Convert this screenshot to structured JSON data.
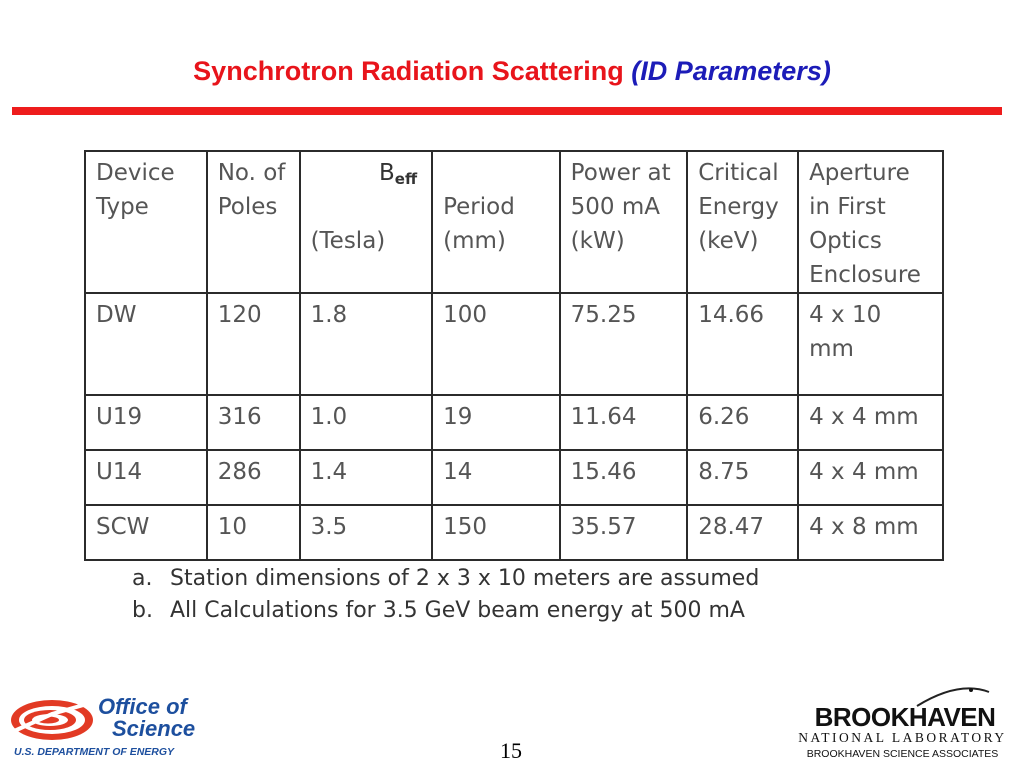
{
  "slide": {
    "title_main": "Synchrotron Radiation Scattering ",
    "title_sub": "(ID Parameters)",
    "page_number": "15",
    "accent_red": "#ee1c1c",
    "accent_blue": "#1c1cb8"
  },
  "table": {
    "headers": {
      "device_type": [
        "Device",
        "Type"
      ],
      "poles": [
        "No. of",
        "Poles"
      ],
      "beff_main": "B",
      "beff_sub": "eff",
      "beff_unit": "(Tesla)",
      "period": "Period",
      "period_unit": "(mm)",
      "power": [
        "Power at",
        "500 mA"
      ],
      "power_unit": "(kW)",
      "critical": [
        "Critical",
        "Energy"
      ],
      "critical_unit": "(keV)",
      "aperture": [
        "Aperture",
        "in First",
        "Optics",
        "Enclosure"
      ]
    },
    "rows": [
      [
        "DW",
        "120",
        "1.8",
        "100",
        "75.25",
        "14.66",
        "4 x 10 mm"
      ],
      [
        "U19",
        "316",
        "1.0",
        "19",
        "11.64",
        "6.26",
        "4 x 4 mm"
      ],
      [
        "U14",
        "286",
        "1.4",
        "14",
        "15.46",
        "8.75",
        "4 x 4 mm"
      ],
      [
        "SCW",
        "10",
        "3.5",
        "150",
        "35.57",
        "28.47",
        "4 x 8 mm"
      ]
    ]
  },
  "notes": [
    {
      "key": "a.",
      "text": "Station dimensions of 2 x 3 x 10 meters are assumed"
    },
    {
      "key": "b.",
      "text": "All Calculations for 3.5 GeV beam energy at 500 mA"
    }
  ],
  "logos": {
    "doe_line1": "Office of",
    "doe_line2": "Science",
    "doe_line3": "U.S. DEPARTMENT OF ENERGY",
    "bnl_name": "BROOKHAVEN",
    "bnl_lab": "NATIONAL LABORATORY",
    "bnl_assoc": "BROOKHAVEN SCIENCE ASSOCIATES"
  }
}
